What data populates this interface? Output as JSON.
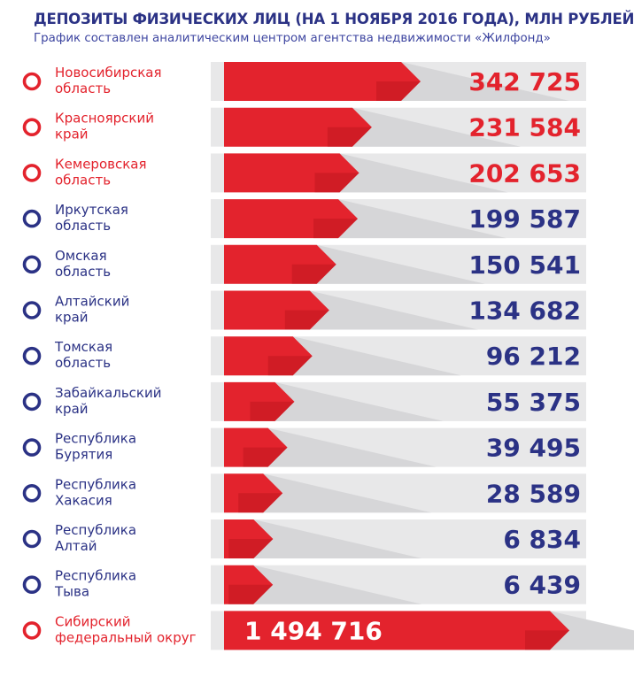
{
  "chart_data": {
    "type": "bar",
    "title": "ДЕПОЗИТЫ ФИЗИЧЕСКИХ ЛИЦ (НА 1 НОЯБРЯ 2016 ГОДА), МЛН РУБЛЕЙ",
    "subtitle": "График составлен аналитическим центром агентства недвижимости «Жилфонд»",
    "categories": [
      [
        "Новосибирская",
        "область"
      ],
      [
        "Красноярский",
        "край"
      ],
      [
        "Кемеровская",
        "область"
      ],
      [
        "Иркутская",
        "область"
      ],
      [
        "Омская",
        "область"
      ],
      [
        "Алтайский",
        "край"
      ],
      [
        "Томская",
        "область"
      ],
      [
        "Забайкальский",
        "край"
      ],
      [
        "Республика",
        "Бурятия"
      ],
      [
        "Республика",
        "Хакасия"
      ],
      [
        "Республика",
        "Алтай"
      ],
      [
        "Республика",
        "Тыва"
      ]
    ],
    "values": [
      342725,
      231584,
      202653,
      199587,
      150541,
      134682,
      96212,
      55375,
      39495,
      28589,
      6834,
      6439
    ],
    "value_labels": [
      "342 725",
      "231 584",
      "202 653",
      "199 587",
      "150 541",
      "134 682",
      "96 212",
      "55 375",
      "39 495",
      "28 589",
      "6 834",
      "6 439"
    ],
    "highlighted_count": 3,
    "total": {
      "label": [
        "Сибирский",
        "федеральный округ"
      ],
      "value": 1494716,
      "value_label": "1 494 716"
    },
    "colors": {
      "red": "#e3232d",
      "red_dark": "#b8151d",
      "navy": "#2b3285",
      "gray_band": "#e8e8e9",
      "gray_shadow": "#d6d6d8"
    }
  }
}
